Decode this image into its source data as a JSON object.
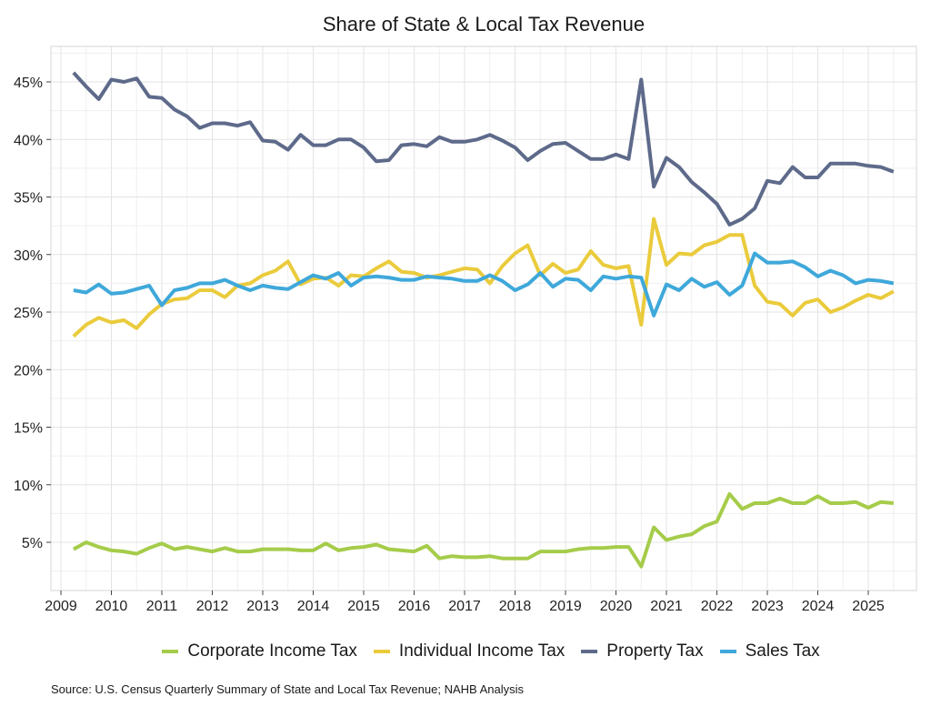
{
  "chart_data": {
    "type": "line",
    "title": "Share of State & Local Tax Revenue",
    "xlabel": "",
    "ylabel": "",
    "x_start": 2009.25,
    "x_step": 0.25,
    "xlim": [
      2008.95,
      2025.9
    ],
    "ylim": [
      1.0,
      47.8
    ],
    "x_ticks": [
      2009,
      2010,
      2011,
      2012,
      2013,
      2014,
      2015,
      2016,
      2017,
      2018,
      2019,
      2020,
      2021,
      2022,
      2023,
      2024,
      2025
    ],
    "x_tick_labels": [
      "2009",
      "2010",
      "2011",
      "2012",
      "2013",
      "2014",
      "2015",
      "2016",
      "2017",
      "2018",
      "2019",
      "2020",
      "2021",
      "2022",
      "2023",
      "2024",
      "2025"
    ],
    "y_ticks": [
      5,
      10,
      15,
      20,
      25,
      30,
      35,
      40,
      45
    ],
    "y_tick_labels": [
      "5%",
      "10%",
      "15%",
      "20%",
      "25%",
      "30%",
      "35%",
      "40%",
      "45%"
    ],
    "grid": true,
    "legend_position": "bottom",
    "series": [
      {
        "name": "Corporate Income Tax",
        "color": "#A5CC4A",
        "values": [
          4.4,
          5.0,
          4.6,
          4.3,
          4.2,
          4.0,
          4.5,
          4.9,
          4.4,
          4.6,
          4.4,
          4.2,
          4.5,
          4.2,
          4.2,
          4.4,
          4.4,
          4.4,
          4.3,
          4.3,
          4.9,
          4.3,
          4.5,
          4.6,
          4.8,
          4.4,
          4.3,
          4.2,
          4.7,
          3.6,
          3.8,
          3.7,
          3.7,
          3.8,
          3.6,
          3.6,
          3.6,
          4.2,
          4.2,
          4.2,
          4.4,
          4.5,
          4.5,
          4.6,
          4.6,
          2.9,
          6.3,
          5.2,
          5.5,
          5.7,
          6.4,
          6.8,
          9.2,
          7.9,
          8.4,
          8.4,
          8.8,
          8.4,
          8.4,
          9.0,
          8.4,
          8.4,
          8.5,
          8.0,
          8.5,
          8.4
        ]
      },
      {
        "name": "Individual Income Tax",
        "color": "#EACB3C",
        "values": [
          22.9,
          23.9,
          24.5,
          24.1,
          24.3,
          23.6,
          24.8,
          25.7,
          26.1,
          26.2,
          26.9,
          26.9,
          26.3,
          27.3,
          27.5,
          28.2,
          28.6,
          29.4,
          27.4,
          27.9,
          28.0,
          27.3,
          28.2,
          28.1,
          28.8,
          29.4,
          28.5,
          28.4,
          28.0,
          28.2,
          28.5,
          28.8,
          28.7,
          27.5,
          29.0,
          30.1,
          30.8,
          28.2,
          29.2,
          28.4,
          28.7,
          30.3,
          29.1,
          28.8,
          29.0,
          23.9,
          33.1,
          29.1,
          30.1,
          30.0,
          30.8,
          31.1,
          31.7,
          31.7,
          27.3,
          25.9,
          25.7,
          24.7,
          25.8,
          26.1,
          25.0,
          25.4,
          26.0,
          26.5,
          26.2,
          26.8
        ]
      },
      {
        "name": "Property Tax",
        "color": "#5E6A8A",
        "values": [
          45.8,
          44.6,
          43.5,
          45.2,
          45.0,
          45.3,
          43.7,
          43.6,
          42.6,
          42.0,
          41.0,
          41.4,
          41.4,
          41.2,
          41.5,
          39.9,
          39.8,
          39.1,
          40.4,
          39.5,
          39.5,
          40.0,
          40.0,
          39.3,
          38.1,
          38.2,
          39.5,
          39.6,
          39.4,
          40.2,
          39.8,
          39.8,
          40.0,
          40.4,
          39.9,
          39.3,
          38.2,
          39.0,
          39.6,
          39.7,
          39.0,
          38.3,
          38.3,
          38.7,
          38.3,
          45.2,
          35.9,
          38.4,
          37.6,
          36.3,
          35.4,
          34.4,
          32.6,
          33.1,
          34.0,
          36.4,
          36.2,
          37.6,
          36.7,
          36.7,
          37.9,
          37.9,
          37.9,
          37.7,
          37.6,
          37.2
        ]
      },
      {
        "name": "Sales Tax",
        "color": "#3FA8DA",
        "values": [
          26.9,
          26.7,
          27.4,
          26.6,
          26.7,
          27.0,
          27.3,
          25.6,
          26.9,
          27.1,
          27.5,
          27.5,
          27.8,
          27.3,
          26.9,
          27.3,
          27.1,
          27.0,
          27.6,
          28.2,
          27.9,
          28.4,
          27.3,
          28.0,
          28.1,
          28.0,
          27.8,
          27.8,
          28.1,
          28.0,
          27.9,
          27.7,
          27.7,
          28.2,
          27.7,
          26.9,
          27.4,
          28.4,
          27.2,
          27.9,
          27.8,
          26.9,
          28.1,
          27.9,
          28.1,
          28.0,
          24.7,
          27.4,
          26.9,
          27.9,
          27.2,
          27.6,
          26.5,
          27.3,
          30.1,
          29.3,
          29.3,
          29.4,
          28.9,
          28.1,
          28.6,
          28.2,
          27.5,
          27.8,
          27.7,
          27.5
        ]
      }
    ],
    "source": "Source: U.S. Census Quarterly Summary of State and Local Tax Revenue; NAHB Analysis"
  }
}
